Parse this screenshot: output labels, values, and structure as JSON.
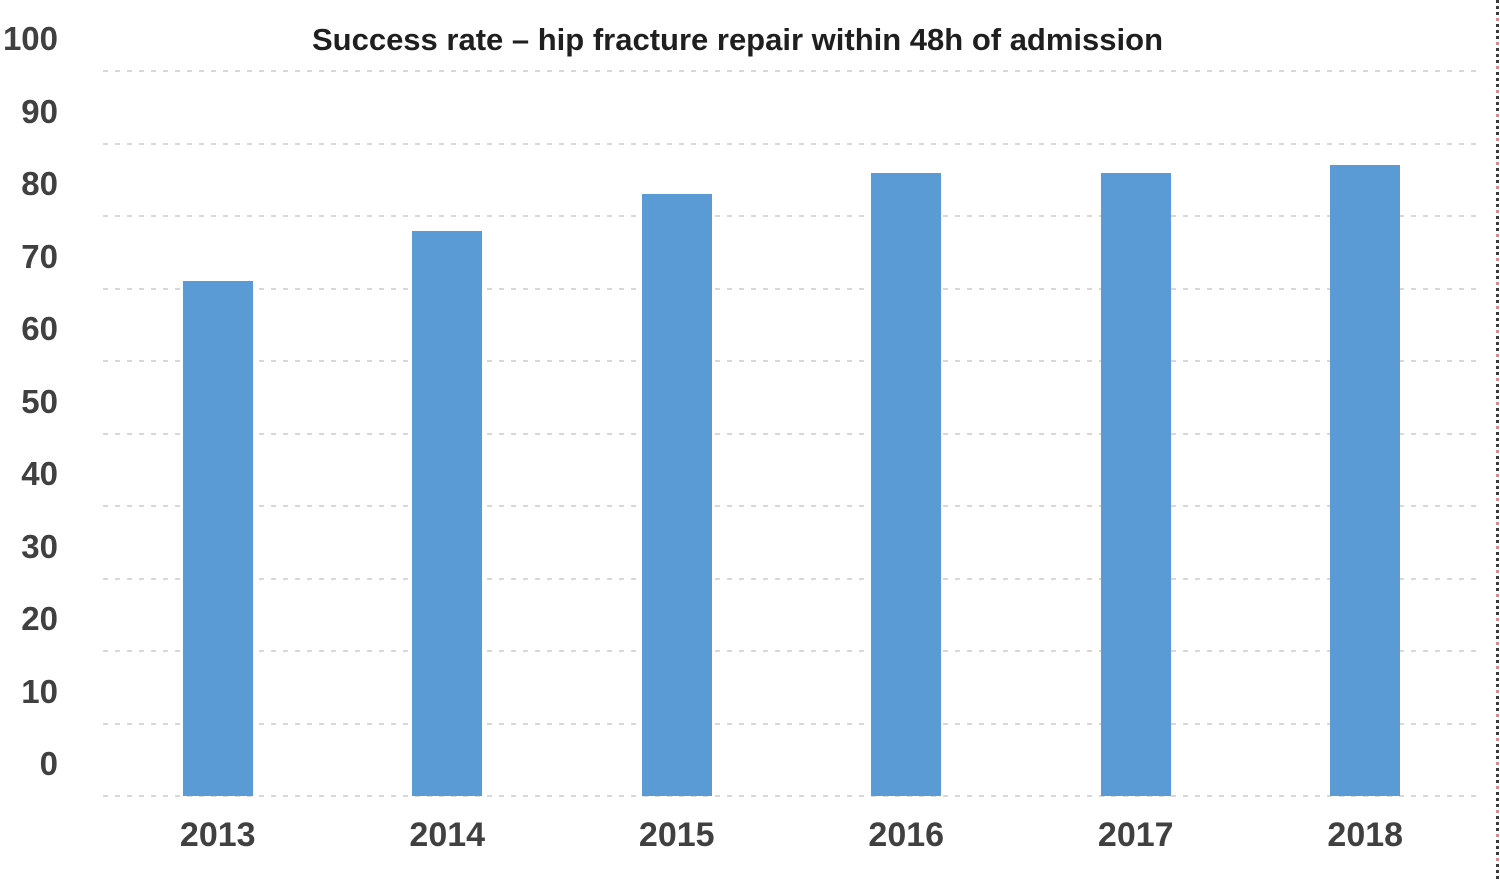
{
  "chart_data": {
    "type": "bar",
    "title": "Success rate – hip fracture repair within 48h of admission",
    "categories": [
      "2013",
      "2014",
      "2015",
      "2016",
      "2017",
      "2018"
    ],
    "values": [
      71,
      78,
      83,
      86,
      86,
      87
    ],
    "xlabel": "",
    "ylabel": "",
    "ylim": [
      0,
      100
    ],
    "yticks": [
      0,
      10,
      20,
      30,
      40,
      50,
      60,
      70,
      80,
      90,
      100
    ],
    "grid": "horizontal-dashed",
    "legend": "none",
    "colors": {
      "bar_fill": "#5B9BD5",
      "gridline": "#D8D8D8",
      "axis_label": "#404040",
      "title": "#1F1F1F",
      "background": "#FFFFFF",
      "marquee_dark": "#3A3A3A",
      "marquee_red": "#D98A8A"
    }
  }
}
